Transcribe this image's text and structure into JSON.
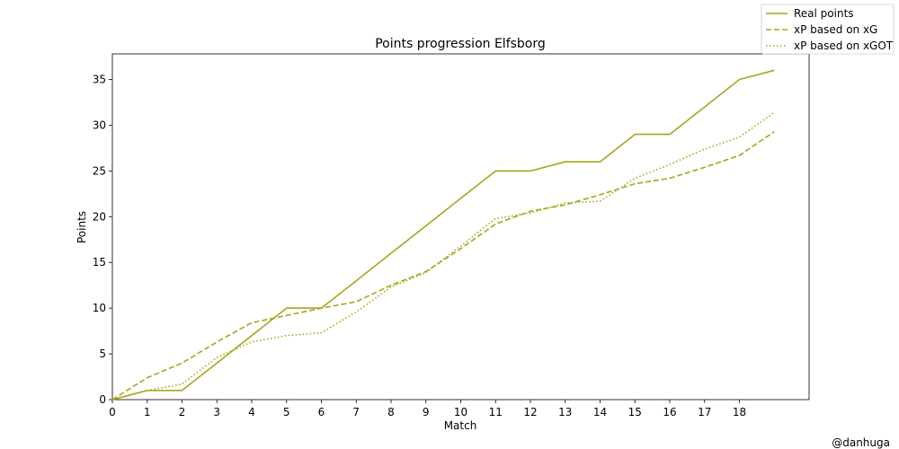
{
  "chart_data": {
    "type": "line",
    "title": "Points progression Elfsborg",
    "xlabel": "Match",
    "ylabel": "Points",
    "xlim": [
      0,
      20
    ],
    "ylim": [
      0,
      37.8
    ],
    "x_ticks": [
      0,
      1,
      2,
      3,
      4,
      5,
      6,
      7,
      8,
      9,
      10,
      11,
      12,
      13,
      14,
      15,
      16,
      17,
      18
    ],
    "y_ticks": [
      0,
      5,
      10,
      15,
      20,
      25,
      30,
      35
    ],
    "grid": false,
    "legend_position": "top-right",
    "x": [
      0,
      1,
      2,
      3,
      4,
      5,
      6,
      7,
      8,
      9,
      10,
      11,
      12,
      13,
      14,
      15,
      16,
      17,
      18,
      19
    ],
    "series": [
      {
        "name": "Real points",
        "style": "solid",
        "color": "#a6a61a",
        "values": [
          0,
          1,
          1,
          4,
          7,
          10,
          10,
          13,
          16,
          19,
          22,
          25,
          25,
          26,
          26,
          29,
          29,
          32,
          35,
          36
        ]
      },
      {
        "name": "xP based on xG",
        "style": "dashed",
        "color": "#a6a61a",
        "values": [
          0,
          2.4,
          4.0,
          6.3,
          8.4,
          9.2,
          10.0,
          10.7,
          12.5,
          14.0,
          16.5,
          19.2,
          20.6,
          21.3,
          22.4,
          23.6,
          24.2,
          25.4,
          26.7,
          29.3
        ]
      },
      {
        "name": "xP based on xGOT",
        "style": "dotted",
        "color": "#a6a61a",
        "values": [
          0,
          1.0,
          1.7,
          4.6,
          6.3,
          7.0,
          7.3,
          9.6,
          12.3,
          13.9,
          16.8,
          19.8,
          20.4,
          21.5,
          21.7,
          24.2,
          25.7,
          27.4,
          28.7,
          31.4
        ]
      }
    ]
  },
  "credit": "@danhuga"
}
